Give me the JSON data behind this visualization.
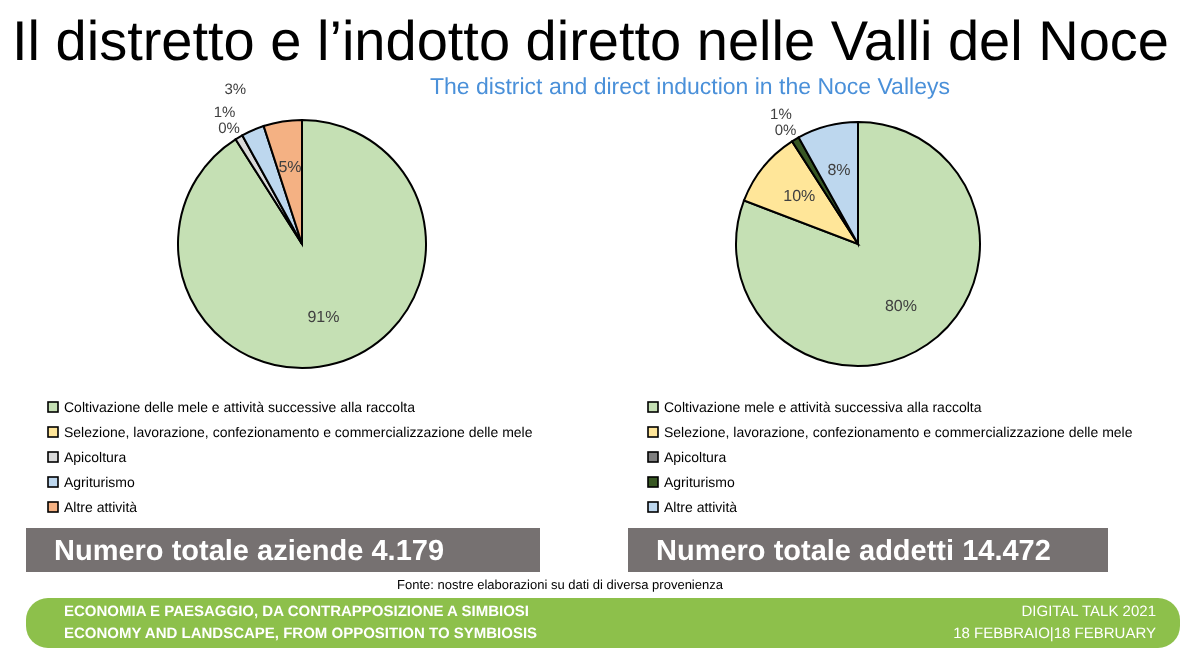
{
  "chart_data": [
    {
      "type": "pie",
      "title": "Il distretto e l’indotto diretto nelle Valli del Noce",
      "subtitle": "The district and direct induction in the Noce Valleys",
      "categories": [
        "Coltivazione delle mele e attività successive alla raccolta",
        "Selezione, lavorazione, confezionamento e commercializzazione delle mele",
        "Apicoltura",
        "Agriturismo",
        "Altre attività"
      ],
      "values": [
        91,
        0,
        1,
        3,
        5
      ],
      "colors": [
        "#c5e0b4",
        "#ffe699",
        "#d9d9d9",
        "#bdd7ee",
        "#f4b183"
      ],
      "value_labels": [
        "91%",
        "0%",
        "1%",
        "3%",
        "5%"
      ],
      "legend": "bottom",
      "annotations": [
        "Numero totale aziende 4.179",
        "Fonte: nostre elaborazioni su dati di diversa provenienza",
        "ECONOMIA E PAESAGGIO, DA CONTRAPPOSIZIONE A SIMBIOSI",
        "ECONOMY AND LANDSCAPE, FROM OPPOSITION TO SYMBIOSIS",
        "DIGITAL TALK 2021",
        "18 FEBBRAIO|18 FEBRUARY"
      ]
    },
    {
      "type": "pie",
      "categories": [
        "Coltivazione mele e attività successiva alla raccolta",
        "Selezione, lavorazione, confezionamento e commercializzazione delle mele",
        "Apicoltura",
        "Agriturismo",
        "Altre attività"
      ],
      "values": [
        80,
        10,
        0,
        1,
        8
      ],
      "colors": [
        "#c5e0b4",
        "#ffe699",
        "#7f7f7f",
        "#385723",
        "#bdd7ee"
      ],
      "value_labels": [
        "80%",
        "10%",
        "0%",
        "1%",
        "8%"
      ],
      "legend": "bottom",
      "annotations": [
        "Numero totale addetti 14.472"
      ]
    }
  ]
}
